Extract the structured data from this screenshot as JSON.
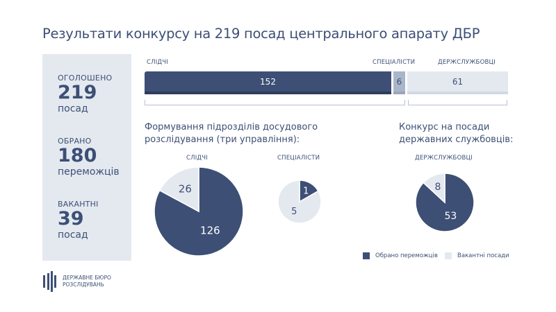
{
  "title": "Результати конкурсу на 219 посад центрального апарату ДБР",
  "summary": [
    {
      "label": "ОГОЛОШЕНО",
      "value": "219",
      "unit": "посад"
    },
    {
      "label": "ОБРАНО",
      "value": "180",
      "unit": "переможців"
    },
    {
      "label": "ВАКАНТНІ",
      "value": "39",
      "unit": "посад"
    }
  ],
  "bar": {
    "segments": [
      {
        "label": "СЛІДЧІ",
        "value": 152,
        "color": "#3d4f75"
      },
      {
        "label": "СПЕЦІАЛІСТИ",
        "value": 6,
        "color": "#a9b6c9"
      },
      {
        "label": "ДЕРЖСЛУЖБОВЦІ",
        "value": 61,
        "color": "#e4e9f0"
      }
    ]
  },
  "section1_title": "Формування підрозділів досудового розслідування (три управління):",
  "section2_title": "Конкурс на посади державних службовців:",
  "chart_data": [
    {
      "type": "pie",
      "title": "СЛІДЧІ",
      "series": [
        {
          "name": "Обрано переможців",
          "value": 126
        },
        {
          "name": "Вакантні посади",
          "value": 26
        }
      ]
    },
    {
      "type": "pie",
      "title": "СПЕЦІАЛІСТИ",
      "series": [
        {
          "name": "Обрано переможців",
          "value": 1
        },
        {
          "name": "Вакантні посади",
          "value": 5
        }
      ]
    },
    {
      "type": "pie",
      "title": "ДЕРЖСЛУЖБОВЦІ",
      "series": [
        {
          "name": "Обрано переможців",
          "value": 53
        },
        {
          "name": "Вакантні посади",
          "value": 8
        }
      ]
    }
  ],
  "legend": [
    {
      "label": "Обрано переможців",
      "color": "#3d4f75"
    },
    {
      "label": "Вакантні посади",
      "color": "#e4e9f0"
    }
  ],
  "logo": {
    "line1": "ДЕРЖАВНЕ БЮРО",
    "line2": "РОЗСЛІДУВАНЬ"
  }
}
